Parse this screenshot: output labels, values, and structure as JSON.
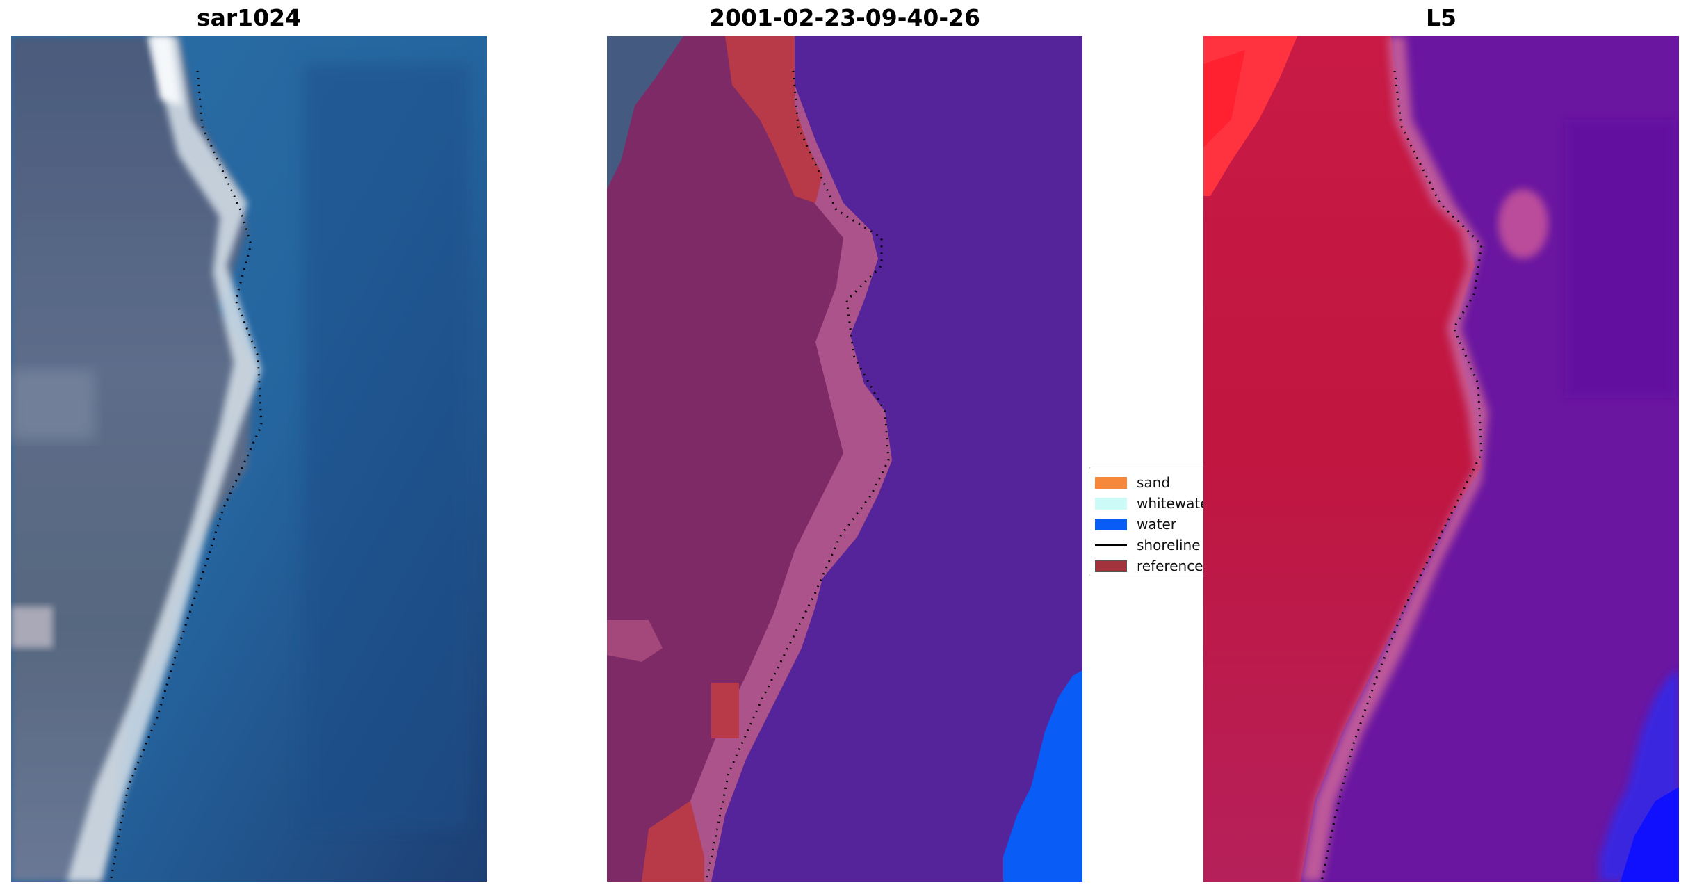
{
  "figure": {
    "panels": [
      {
        "title": "sar1024"
      },
      {
        "title": "2001-02-23-09-40-26"
      },
      {
        "title": "L5"
      }
    ],
    "legend": {
      "items": [
        {
          "label": "sand",
          "color": "#f5883a",
          "kind": "patch"
        },
        {
          "label": "whitewater",
          "color": "#ccfbf7",
          "kind": "patch"
        },
        {
          "label": "water",
          "color": "#0a5cf7",
          "kind": "patch"
        },
        {
          "label": "shoreline",
          "color": "#000000",
          "kind": "line"
        },
        {
          "label": "reference",
          "color": "#a2323c",
          "kind": "patch"
        }
      ]
    },
    "colors": {
      "water_class": "#0a5cf7",
      "reference_region": "#b83a48",
      "offshore_overlay": "#55249a",
      "land_overlay": "#7e2a66",
      "heatmap_land": "#c01640",
      "heatmap_sea": "#6a16a0",
      "satellite_land": "#5b6a86",
      "satellite_sea": "#1f5a96",
      "satellite_surf": "#e6eef2"
    }
  }
}
